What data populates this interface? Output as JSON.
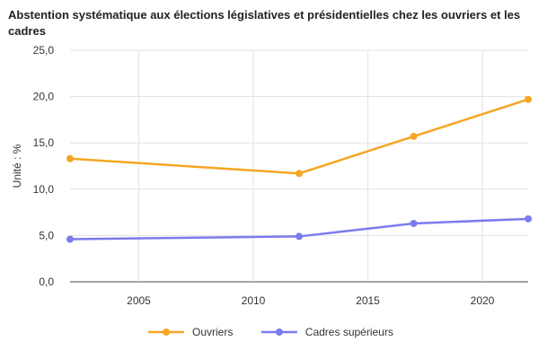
{
  "chart_data": {
    "type": "line",
    "title": "Abstention systématique aux élections législatives et présidentielles chez les ouvriers et les cadres",
    "ylabel": "Unité : %",
    "xlabel": "",
    "xlim": [
      2002,
      2022
    ],
    "ylim": [
      0,
      25
    ],
    "x_ticks": [
      2005,
      2010,
      2015,
      2020
    ],
    "y_ticks": [
      "0,0",
      "5,0",
      "10,0",
      "15,0",
      "20,0",
      "25,0"
    ],
    "grid": true,
    "legend_position": "bottom",
    "x": [
      2002,
      2012,
      2017,
      2022
    ],
    "series": [
      {
        "name": "Ouvriers",
        "color": "#F5A623",
        "values": [
          13.3,
          11.7,
          15.7,
          19.7
        ]
      },
      {
        "name": "Cadres supérieurs",
        "color": "#7B7BEF",
        "values": [
          4.6,
          4.9,
          6.3,
          6.8
        ]
      }
    ]
  }
}
